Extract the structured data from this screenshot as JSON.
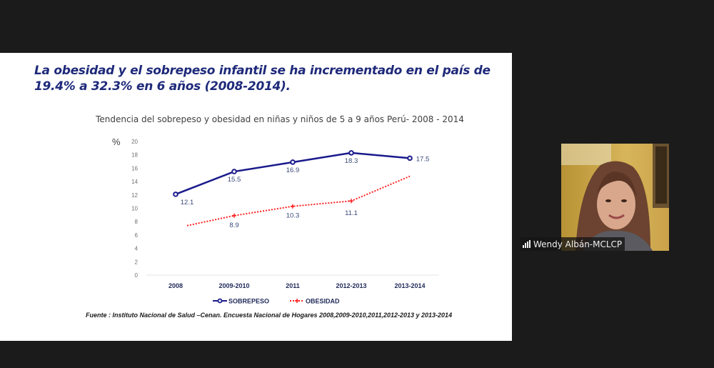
{
  "slide": {
    "headline": "La obesidad y el sobrepeso infantil se ha incrementado en el país de 19.4% a 32.3% en 6 años (2008-2014).",
    "source": "Fuente : Instituto Nacional de Salud –Cenan. Encuesta Nacional de Hogares 2008,2009-2010,2011,2012-2013 y 2013-2014"
  },
  "chart_data": {
    "type": "line",
    "title": "Tendencia del sobrepeso y obesidad en niñas y niños de 5 a 9 años Perú- 2008 - 2014",
    "ylabel": "%",
    "xlabel": "",
    "ylim": [
      0,
      20
    ],
    "yticks": [
      0,
      2,
      4,
      6,
      8,
      10,
      12,
      14,
      16,
      18,
      20
    ],
    "grid": false,
    "legend_position": "bottom",
    "categories": [
      "2008",
      "2009-2010",
      "2011",
      "2012-2013",
      "2013-2014"
    ],
    "series": [
      {
        "name": "SOBREPESO",
        "values": [
          12.1,
          15.5,
          16.9,
          18.3,
          17.5
        ],
        "color": "#1a1a8c",
        "style": "solid"
      },
      {
        "name": "OBESIDAD",
        "values": [
          7.3,
          8.9,
          10.3,
          11.1,
          14.8
        ],
        "color": "#ff2020",
        "style": "dotted"
      }
    ]
  },
  "participant": {
    "name": "Wendy Albán-MCLCP",
    "signal_icon": "signal-strength-icon"
  },
  "colors": {
    "headline": "#1f2a7a",
    "background": "#1b1b1b",
    "label": "#3a4a7a"
  }
}
